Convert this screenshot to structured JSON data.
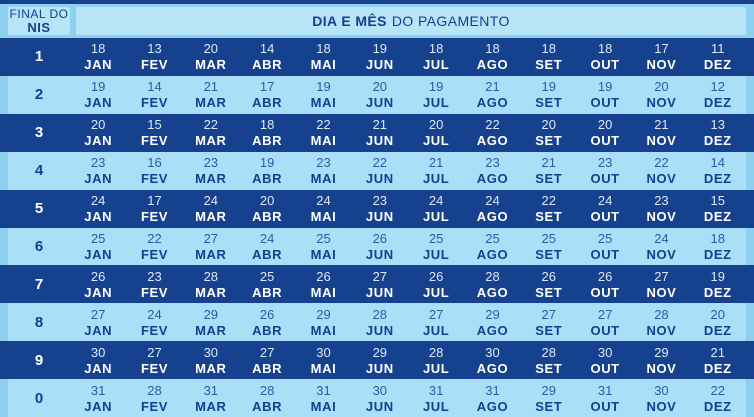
{
  "header": {
    "nis_label_line1": "FINAL DO",
    "nis_label_line2": "NIS",
    "title_bold": "DIA E MÊS",
    "title_rest": "DO PAGAMENTO"
  },
  "colors": {
    "navy": "#16418f",
    "light_row": "#abdff7",
    "background": "#8ed0ef",
    "header_panel": "#b9e4f8",
    "text_on_dark": "#ffffff",
    "text_on_light": "#12408e"
  },
  "chart_data": {
    "type": "table",
    "title": "DIA E MÊS DO PAGAMENTO",
    "row_header": "FINAL DO NIS",
    "months": [
      "JAN",
      "FEV",
      "MAR",
      "ABR",
      "MAI",
      "JUN",
      "JUL",
      "AGO",
      "SET",
      "OUT",
      "NOV",
      "DEZ"
    ],
    "rows": [
      {
        "nis": "1",
        "days": [
          18,
          13,
          20,
          14,
          18,
          19,
          18,
          18,
          18,
          18,
          17,
          11
        ]
      },
      {
        "nis": "2",
        "days": [
          19,
          14,
          21,
          17,
          19,
          20,
          19,
          21,
          19,
          19,
          20,
          12
        ]
      },
      {
        "nis": "3",
        "days": [
          20,
          15,
          22,
          18,
          22,
          21,
          20,
          22,
          20,
          20,
          21,
          13
        ]
      },
      {
        "nis": "4",
        "days": [
          23,
          16,
          23,
          19,
          23,
          22,
          21,
          23,
          21,
          23,
          22,
          14
        ]
      },
      {
        "nis": "5",
        "days": [
          24,
          17,
          24,
          20,
          24,
          23,
          24,
          24,
          22,
          24,
          23,
          15
        ]
      },
      {
        "nis": "6",
        "days": [
          25,
          22,
          27,
          24,
          25,
          26,
          25,
          25,
          25,
          25,
          24,
          18
        ]
      },
      {
        "nis": "7",
        "days": [
          26,
          23,
          28,
          25,
          26,
          27,
          26,
          28,
          26,
          26,
          27,
          19
        ]
      },
      {
        "nis": "8",
        "days": [
          27,
          24,
          29,
          26,
          29,
          28,
          27,
          29,
          27,
          27,
          28,
          20
        ]
      },
      {
        "nis": "9",
        "days": [
          30,
          27,
          30,
          27,
          30,
          29,
          28,
          30,
          28,
          30,
          29,
          21
        ]
      },
      {
        "nis": "0",
        "days": [
          31,
          28,
          31,
          28,
          31,
          30,
          31,
          31,
          29,
          31,
          30,
          22
        ]
      }
    ]
  }
}
